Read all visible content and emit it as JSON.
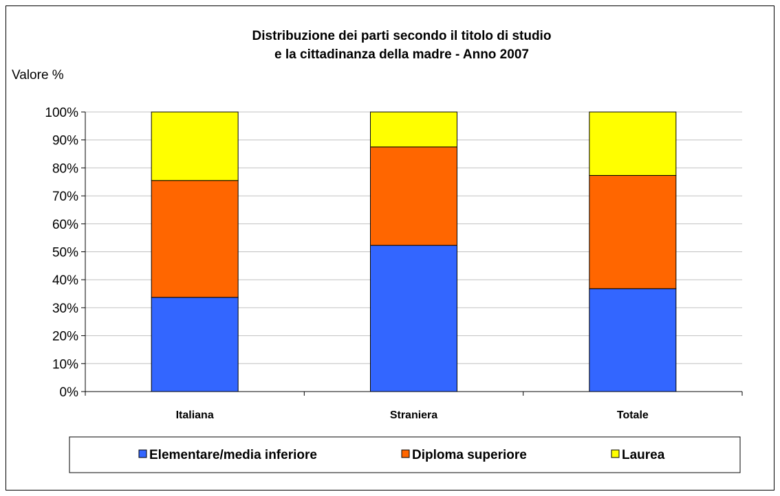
{
  "chart_data": {
    "type": "bar",
    "stacked": true,
    "title_lines": [
      "Distribuzione dei parti secondo il titolo di studio",
      "e la cittadinanza della madre - Anno 2007"
    ],
    "ylabel": "Valore %",
    "xlabel": "",
    "categories": [
      "Italiana",
      "Straniera",
      "Totale"
    ],
    "ylim": [
      0,
      100
    ],
    "yticks": [
      "0%",
      "10%",
      "20%",
      "30%",
      "40%",
      "50%",
      "60%",
      "70%",
      "80%",
      "90%",
      "100%"
    ],
    "grid": true,
    "legend_position": "bottom",
    "series": [
      {
        "name": "Elementare/media inferiore",
        "color": "#3366ff",
        "values": [
          33.7,
          52.3,
          36.8
        ]
      },
      {
        "name": "Diploma superiore",
        "color": "#ff6600",
        "values": [
          41.8,
          35.2,
          40.5
        ]
      },
      {
        "name": "Laurea",
        "color": "#ffff00",
        "values": [
          24.5,
          12.5,
          22.7
        ]
      }
    ]
  }
}
